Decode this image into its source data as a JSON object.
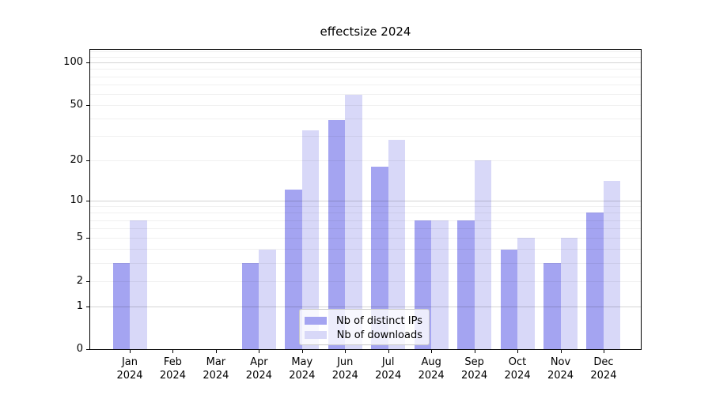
{
  "title": "effectsize 2024",
  "chart_data": {
    "type": "bar",
    "title": "effectsize 2024",
    "categories": [
      "Jan 2024",
      "Feb 2024",
      "Mar 2024",
      "Apr 2024",
      "May 2024",
      "Jun 2024",
      "Jul 2024",
      "Aug 2024",
      "Sep 2024",
      "Oct 2024",
      "Nov 2024",
      "Dec 2024"
    ],
    "series": [
      {
        "name": "Nb of distinct IPs",
        "color": "#a4a4f1",
        "values": [
          3,
          0,
          0,
          3,
          12,
          39,
          18,
          7,
          7,
          4,
          3,
          8
        ]
      },
      {
        "name": "Nb of downloads",
        "color": "#d8d8f8",
        "values": [
          7,
          0,
          0,
          4,
          33,
          59,
          28,
          7,
          20,
          5,
          5,
          14
        ]
      }
    ],
    "y_ticks": [
      0,
      1,
      2,
      5,
      10,
      20,
      50,
      100
    ],
    "y_scale": "log1p",
    "ylim": [
      0,
      127
    ],
    "grid": "on",
    "grid_minor_values": [
      2,
      3,
      4,
      5,
      6,
      7,
      8,
      9,
      20,
      30,
      40,
      50,
      60,
      70,
      80,
      90,
      110,
      120
    ],
    "grid_major_values": [
      1,
      10,
      100
    ],
    "legend_position": "lower center",
    "xlabel": "",
    "ylabel": ""
  },
  "legend": {
    "items": [
      {
        "label": "Nb of distinct IPs"
      },
      {
        "label": "Nb of downloads"
      }
    ]
  }
}
